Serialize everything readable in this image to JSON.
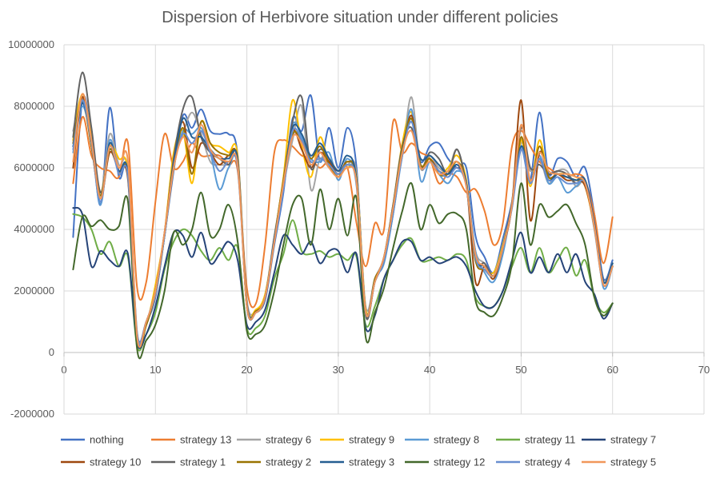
{
  "chart_data": {
    "type": "line",
    "title": "Dispersion of Herbivore situation under different policies",
    "xlabel": "",
    "ylabel": "",
    "xlim": [
      0,
      70
    ],
    "ylim": [
      -2000000,
      10000000
    ],
    "x_ticks": [
      0,
      10,
      20,
      30,
      40,
      50,
      60,
      70
    ],
    "y_ticks": [
      -2000000,
      0,
      2000000,
      4000000,
      6000000,
      8000000,
      10000000
    ],
    "x_tick_labels": [
      "0",
      "10",
      "20",
      "30",
      "40",
      "50",
      "60",
      "70"
    ],
    "y_tick_labels": [
      "-2000000",
      "0",
      "2000000",
      "4000000",
      "6000000",
      "8000000",
      "10000000"
    ],
    "grid": true,
    "legend_position": "bottom",
    "x": [
      1,
      2,
      3,
      4,
      5,
      6,
      7,
      8,
      9,
      10,
      11,
      12,
      13,
      14,
      15,
      16,
      17,
      18,
      19,
      20,
      21,
      22,
      23,
      24,
      25,
      26,
      27,
      28,
      29,
      30,
      31,
      32,
      33,
      34,
      35,
      36,
      37,
      38,
      39,
      40,
      41,
      42,
      43,
      44,
      45,
      46,
      47,
      48,
      49,
      50,
      51,
      52,
      53,
      54,
      55,
      56,
      57,
      58,
      59,
      60
    ],
    "series": [
      {
        "name": "nothing",
        "color": "#4472C4",
        "values": [
          3750000,
          8200000,
          7000000,
          4800000,
          7950000,
          5700000,
          5900000,
          650000,
          1000000,
          1800000,
          3800000,
          5900000,
          7700000,
          7300000,
          7900000,
          7200000,
          7100000,
          7100000,
          6400000,
          1500000,
          1350000,
          1700000,
          3500000,
          5200000,
          7600000,
          7200000,
          8350000,
          6200000,
          7300000,
          6000000,
          7300000,
          6000000,
          1300000,
          2300000,
          3000000,
          4500000,
          6500000,
          7600000,
          6200000,
          6700000,
          6800000,
          6300000,
          6000000,
          6000000,
          3800000,
          3100000,
          2600000,
          3700000,
          4900000,
          6600000,
          5600000,
          7800000,
          5800000,
          6300000,
          6200000,
          5700000,
          6000000,
          4500000,
          2400000,
          3000000
        ]
      },
      {
        "name": "strategy 13",
        "color": "#ED7D31",
        "values": [
          5500000,
          7650000,
          6400000,
          6000000,
          5900000,
          5700000,
          6800000,
          2100000,
          2300000,
          4900000,
          7100000,
          6000000,
          6200000,
          6800000,
          6400000,
          6400000,
          6400000,
          6100000,
          5900000,
          2100000,
          1600000,
          3500000,
          6500000,
          6900000,
          6700000,
          6400000,
          6300000,
          6000000,
          6200000,
          5700000,
          6000000,
          4200000,
          2800000,
          4200000,
          4000000,
          7500000,
          6500000,
          6800000,
          6500000,
          6300000,
          5500000,
          5800000,
          5700000,
          5200000,
          5300000,
          4600000,
          3500000,
          4200000,
          6700000,
          7200000,
          6700000,
          6200000,
          6000000,
          5800000,
          5700000,
          5800000,
          5600000,
          4500000,
          2900000,
          4400000
        ]
      },
      {
        "name": "strategy 6",
        "color": "#A5A5A5",
        "values": [
          7200000,
          8300000,
          6700000,
          5100000,
          7100000,
          6100000,
          5900000,
          600000,
          1000000,
          1900000,
          3800000,
          6100000,
          7100000,
          7800000,
          7100000,
          6200000,
          6100000,
          6100000,
          6100000,
          1700000,
          1350000,
          1800000,
          3800000,
          5400000,
          6900000,
          8000000,
          5300000,
          6300000,
          6000000,
          5800000,
          6100000,
          5800000,
          1500000,
          2400000,
          3100000,
          4800000,
          6400000,
          8300000,
          6000000,
          6400000,
          6000000,
          5900000,
          6600000,
          5400000,
          3300000,
          2900000,
          2500000,
          3400000,
          4700000,
          6800000,
          5900000,
          6300000,
          5500000,
          5900000,
          5900000,
          5400000,
          5500000,
          4000000,
          2200000,
          2800000
        ]
      },
      {
        "name": "strategy 9",
        "color": "#FFC000",
        "values": [
          6900000,
          8400000,
          7000000,
          5200000,
          6700000,
          6300000,
          5800000,
          500000,
          900000,
          2200000,
          3900000,
          6500000,
          7200000,
          5500000,
          7500000,
          6800000,
          6700000,
          6500000,
          6400000,
          1600000,
          1400000,
          1900000,
          3700000,
          5700000,
          8200000,
          6700000,
          5700000,
          7000000,
          6100000,
          5800000,
          6000000,
          5700000,
          1400000,
          2300000,
          3100000,
          4800000,
          6800000,
          7800000,
          6000000,
          6300000,
          5800000,
          6000000,
          6400000,
          5600000,
          3200000,
          2800000,
          2600000,
          3500000,
          4800000,
          6900000,
          5400000,
          6900000,
          5700000,
          5800000,
          5800000,
          5700000,
          5400000,
          4100000,
          2300000,
          2900000
        ]
      },
      {
        "name": "strategy 8",
        "color": "#5B9BD5",
        "values": [
          6500000,
          8000000,
          6800000,
          4800000,
          6900000,
          5800000,
          5800000,
          550000,
          1000000,
          2000000,
          3900000,
          6000000,
          7200000,
          7100000,
          7300000,
          6500000,
          5300000,
          6000000,
          6100000,
          1600000,
          1300000,
          1800000,
          3600000,
          5300000,
          7400000,
          7000000,
          6300000,
          6200000,
          6500000,
          5600000,
          6300000,
          5400000,
          1300000,
          2400000,
          2900000,
          4500000,
          6400000,
          7900000,
          5600000,
          6200000,
          5800000,
          5500000,
          5900000,
          5500000,
          3300000,
          2600000,
          2300000,
          3200000,
          4800000,
          6700000,
          5600000,
          6400000,
          5500000,
          5700000,
          5200000,
          5400000,
          5500000,
          4200000,
          2100000,
          2800000
        ]
      },
      {
        "name": "strategy 11",
        "color": "#70AD47",
        "values": [
          4500000,
          4400000,
          4000000,
          3200000,
          3600000,
          2800000,
          3100000,
          200000,
          600000,
          1300000,
          2700000,
          3600000,
          4000000,
          3800000,
          3300000,
          3000000,
          3400000,
          3000000,
          3400000,
          800000,
          800000,
          1200000,
          2400000,
          3200000,
          4300000,
          3300000,
          3200000,
          3300000,
          3100000,
          3200000,
          3000000,
          3100000,
          900000,
          1500000,
          2400000,
          3000000,
          3500000,
          3700000,
          3000000,
          3000000,
          3100000,
          3000000,
          3200000,
          3000000,
          1800000,
          1500000,
          1500000,
          2000000,
          2800000,
          3400000,
          2600000,
          3400000,
          2600000,
          3000000,
          3400000,
          2500000,
          3000000,
          1800000,
          1300000,
          1600000
        ]
      },
      {
        "name": "strategy 7",
        "color": "#264478",
        "values": [
          4700000,
          4500000,
          2800000,
          3300000,
          3000000,
          2800000,
          3200000,
          300000,
          600000,
          1500000,
          2800000,
          3900000,
          3800000,
          3100000,
          3900000,
          2900000,
          3200000,
          3600000,
          3000000,
          900000,
          1000000,
          1400000,
          2600000,
          3800000,
          3500000,
          3200000,
          3600000,
          2900000,
          3300000,
          3300000,
          2600000,
          3200000,
          800000,
          1200000,
          2400000,
          3000000,
          3600000,
          3600000,
          3000000,
          3100000,
          2900000,
          3000000,
          3100000,
          2800000,
          2000000,
          1500000,
          1500000,
          2000000,
          3000000,
          3900000,
          2600000,
          3100000,
          2600000,
          3200000,
          2600000,
          3200000,
          2300000,
          1900000,
          1100000,
          1600000
        ]
      },
      {
        "name": "strategy 10",
        "color": "#9E480E",
        "values": [
          6000000,
          8300000,
          6700000,
          5000000,
          6500000,
          5900000,
          5600000,
          500000,
          1000000,
          2000000,
          3900000,
          6200000,
          7500000,
          6000000,
          6800000,
          6500000,
          6100000,
          6400000,
          6200000,
          1500000,
          1300000,
          1800000,
          3600000,
          5500000,
          7200000,
          6600000,
          6000000,
          6500000,
          6200000,
          5800000,
          6200000,
          5600000,
          1300000,
          2300000,
          3100000,
          4700000,
          6500000,
          7700000,
          6100000,
          6300000,
          5900000,
          5800000,
          6000000,
          5500000,
          2300000,
          2800000,
          2400000,
          3400000,
          4800000,
          8200000,
          4300000,
          6500000,
          5700000,
          5800000,
          5600000,
          5600000,
          5400000,
          4100000,
          2200000,
          2800000
        ]
      },
      {
        "name": "strategy 1",
        "color": "#636363",
        "values": [
          7000000,
          9100000,
          7300000,
          5200000,
          6600000,
          5900000,
          5700000,
          500000,
          900000,
          2000000,
          3800000,
          6300000,
          7900000,
          8300000,
          7000000,
          6500000,
          6300000,
          6100000,
          6300000,
          1600000,
          1300000,
          1800000,
          3700000,
          5600000,
          7500000,
          8300000,
          6000000,
          6600000,
          6300000,
          5900000,
          6100000,
          5500000,
          1200000,
          2300000,
          3100000,
          4800000,
          6700000,
          7300000,
          6000000,
          6500000,
          6300000,
          5800000,
          6600000,
          5400000,
          3000000,
          2900000,
          2500000,
          3400000,
          4900000,
          7300000,
          6000000,
          6100000,
          5800000,
          5900000,
          5800000,
          5500000,
          5600000,
          4200000,
          2300000,
          2900000
        ]
      },
      {
        "name": "strategy 2",
        "color": "#997300",
        "values": [
          6800000,
          8200000,
          6700000,
          5100000,
          6600000,
          5900000,
          5700000,
          500000,
          900000,
          2000000,
          3800000,
          6000000,
          7300000,
          5800000,
          7500000,
          6800000,
          6500000,
          6400000,
          6200000,
          1500000,
          1350000,
          1800000,
          3700000,
          5600000,
          7100000,
          6900000,
          6300000,
          6700000,
          6100000,
          5700000,
          6200000,
          5600000,
          1300000,
          2400000,
          3000000,
          4700000,
          6600000,
          7600000,
          6100000,
          6300000,
          5800000,
          5800000,
          6200000,
          5500000,
          3000000,
          2700000,
          2500000,
          3400000,
          4800000,
          7000000,
          5500000,
          6700000,
          5700000,
          5800000,
          5700000,
          5600000,
          5500000,
          4100000,
          2300000,
          2800000
        ]
      },
      {
        "name": "strategy 3",
        "color": "#255E91",
        "values": [
          6700000,
          8100000,
          6900000,
          5000000,
          6800000,
          5900000,
          5800000,
          500000,
          1000000,
          2000000,
          3800000,
          6100000,
          7600000,
          7000000,
          7000000,
          6600000,
          6300000,
          6300000,
          6200000,
          1500000,
          1300000,
          1800000,
          3700000,
          5400000,
          7300000,
          7100000,
          6400000,
          6800000,
          6300000,
          5900000,
          6400000,
          5600000,
          1300000,
          2300000,
          3000000,
          4600000,
          6500000,
          7500000,
          6300000,
          6400000,
          6100000,
          5800000,
          6100000,
          5500000,
          3100000,
          2800000,
          2500000,
          3400000,
          4800000,
          6700000,
          5600000,
          6300000,
          5600000,
          5800000,
          5700000,
          5600000,
          5600000,
          4200000,
          2300000,
          2900000
        ]
      },
      {
        "name": "strategy 12",
        "color": "#43682B",
        "values": [
          2700000,
          4400000,
          4100000,
          4300000,
          4000000,
          4100000,
          4900000,
          100000,
          400000,
          900000,
          2000000,
          3900000,
          3500000,
          4000000,
          5200000,
          3800000,
          4000000,
          4800000,
          3600000,
          700000,
          600000,
          900000,
          2000000,
          3500000,
          4800000,
          5000000,
          3500000,
          5300000,
          4000000,
          5000000,
          3800000,
          5000000,
          500000,
          1300000,
          2100000,
          3400000,
          4600000,
          5500000,
          4000000,
          4800000,
          4200000,
          4500000,
          4500000,
          4000000,
          1700000,
          1300000,
          1200000,
          1800000,
          2900000,
          5500000,
          3500000,
          4800000,
          4400000,
          4600000,
          4800000,
          4200000,
          3500000,
          1800000,
          1200000,
          1600000
        ]
      },
      {
        "name": "strategy 4",
        "color": "#698ED0",
        "values": [
          6600000,
          8200000,
          6800000,
          4900000,
          6700000,
          5800000,
          5700000,
          550000,
          1000000,
          2000000,
          3800000,
          6000000,
          7100000,
          6800000,
          7200000,
          6500000,
          5900000,
          6200000,
          6000000,
          1500000,
          1300000,
          1800000,
          3600000,
          5300000,
          7200000,
          6900000,
          6200000,
          6300000,
          6100000,
          5800000,
          6100000,
          5500000,
          1300000,
          2300000,
          3000000,
          4600000,
          6400000,
          7500000,
          6000000,
          6200000,
          5900000,
          5700000,
          6000000,
          5400000,
          3100000,
          2700000,
          2500000,
          3400000,
          4700000,
          6600000,
          5500000,
          6300000,
          5600000,
          5700000,
          5500000,
          5500000,
          5500000,
          4100000,
          2200000,
          2800000
        ]
      },
      {
        "name": "strategy 5",
        "color": "#F1975A",
        "values": [
          6200000,
          8400000,
          6900000,
          5000000,
          6700000,
          6000000,
          6200000,
          500000,
          1000000,
          2000000,
          3900000,
          6000000,
          7000000,
          6500000,
          7400000,
          6600000,
          6300000,
          6200000,
          6100000,
          1500000,
          1300000,
          1800000,
          3600000,
          5500000,
          7000000,
          6800000,
          6100000,
          6500000,
          6000000,
          5700000,
          6000000,
          5500000,
          1300000,
          2300000,
          3100000,
          4700000,
          6500000,
          7200000,
          6000000,
          6200000,
          5800000,
          5900000,
          6200000,
          5400000,
          3200000,
          2800000,
          2500000,
          3400000,
          4800000,
          7400000,
          5600000,
          6500000,
          5900000,
          5800000,
          5800000,
          5700000,
          5500000,
          4100000,
          2200000,
          2800000
        ]
      }
    ]
  }
}
